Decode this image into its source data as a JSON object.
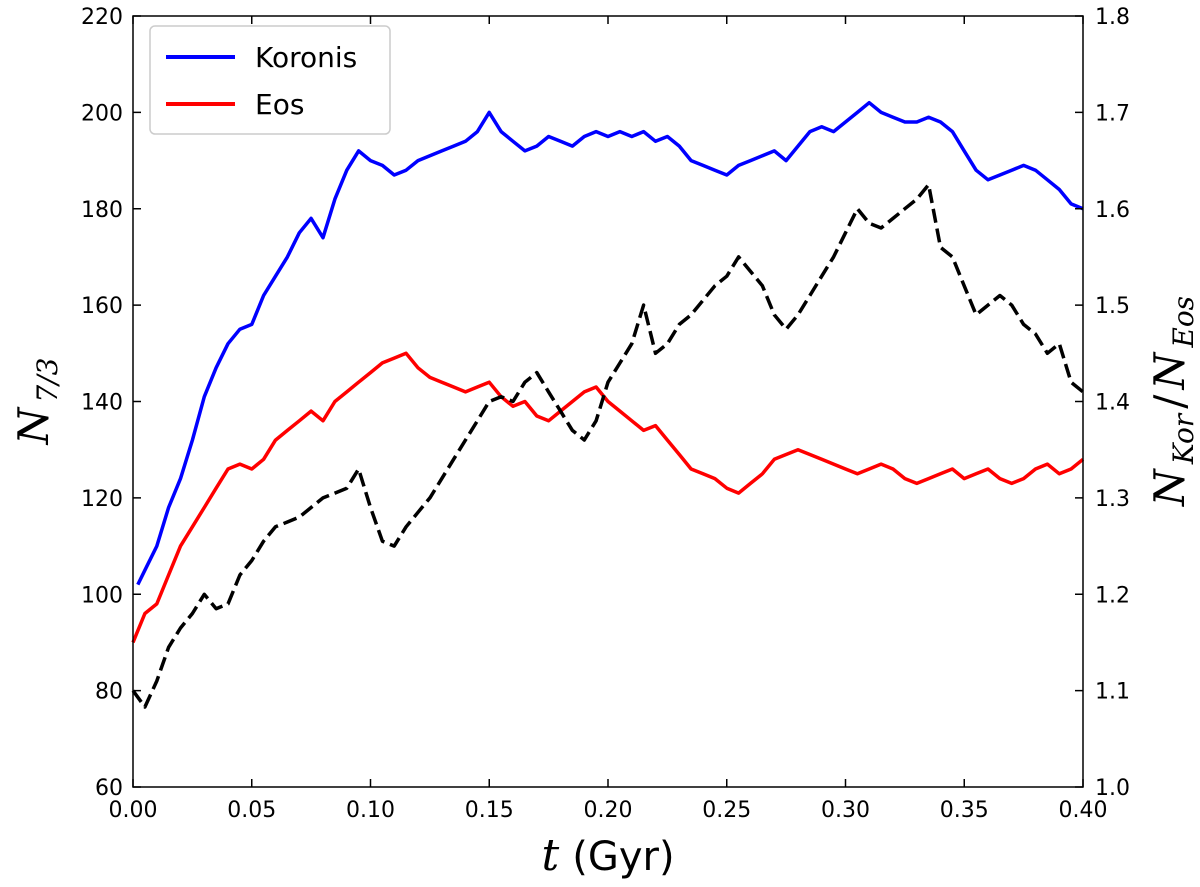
{
  "chart_data": {
    "type": "line",
    "x_ticks": [
      "0.00",
      "0.05",
      "0.10",
      "0.15",
      "0.20",
      "0.25",
      "0.30",
      "0.35",
      "0.40"
    ],
    "y_left_ticks": [
      "60",
      "80",
      "100",
      "120",
      "140",
      "160",
      "180",
      "200",
      "220"
    ],
    "y_right_ticks": [
      "1.0",
      "1.1",
      "1.2",
      "1.3",
      "1.4",
      "1.5",
      "1.6",
      "1.7",
      "1.8"
    ],
    "xlim": [
      0.0,
      0.4
    ],
    "ylim_left": [
      60,
      220
    ],
    "ylim_right": [
      1.0,
      1.8
    ],
    "xlabel": {
      "var": "t",
      "unit": "(Gyr)"
    },
    "ylabel_left": {
      "base": "N",
      "sub": "7/3"
    },
    "ylabel_right": {
      "base1": "N",
      "sub1": "Kor",
      "slash": "/",
      "base2": "N",
      "sub2": "Eos"
    },
    "legend_position": "top-left",
    "series": [
      {
        "name": "Koronis",
        "axis": "left",
        "color": "#0000ff",
        "style": "solid",
        "x": [
          0.002,
          0.005,
          0.01,
          0.015,
          0.02,
          0.025,
          0.03,
          0.035,
          0.04,
          0.045,
          0.05,
          0.055,
          0.06,
          0.065,
          0.07,
          0.075,
          0.08,
          0.085,
          0.09,
          0.095,
          0.1,
          0.105,
          0.11,
          0.115,
          0.12,
          0.125,
          0.13,
          0.135,
          0.14,
          0.145,
          0.15,
          0.155,
          0.16,
          0.165,
          0.17,
          0.175,
          0.18,
          0.185,
          0.19,
          0.195,
          0.2,
          0.205,
          0.21,
          0.215,
          0.22,
          0.225,
          0.23,
          0.235,
          0.24,
          0.245,
          0.25,
          0.255,
          0.26,
          0.265,
          0.27,
          0.275,
          0.28,
          0.285,
          0.29,
          0.295,
          0.3,
          0.305,
          0.31,
          0.315,
          0.32,
          0.325,
          0.33,
          0.335,
          0.34,
          0.345,
          0.35,
          0.355,
          0.36,
          0.365,
          0.37,
          0.375,
          0.38,
          0.385,
          0.39,
          0.395,
          0.4
        ],
        "y": [
          102,
          105,
          110,
          118,
          124,
          132,
          141,
          147,
          152,
          155,
          156,
          162,
          166,
          170,
          175,
          178,
          174,
          182,
          188,
          192,
          190,
          189,
          187,
          188,
          190,
          191,
          192,
          193,
          194,
          196,
          200,
          196,
          194,
          192,
          193,
          195,
          194,
          193,
          195,
          196,
          195,
          196,
          195,
          196,
          194,
          195,
          193,
          190,
          189,
          188,
          187,
          189,
          190,
          191,
          192,
          190,
          193,
          196,
          197,
          196,
          198,
          200,
          202,
          200,
          199,
          198,
          198,
          199,
          198,
          196,
          192,
          188,
          186,
          187,
          188,
          189,
          188,
          186,
          184,
          181,
          180
        ]
      },
      {
        "name": "Eos",
        "axis": "left",
        "color": "#ff0000",
        "style": "solid",
        "x": [
          0.0,
          0.005,
          0.01,
          0.015,
          0.02,
          0.025,
          0.03,
          0.035,
          0.04,
          0.045,
          0.05,
          0.055,
          0.06,
          0.065,
          0.07,
          0.075,
          0.08,
          0.085,
          0.09,
          0.095,
          0.1,
          0.105,
          0.11,
          0.115,
          0.12,
          0.125,
          0.13,
          0.135,
          0.14,
          0.145,
          0.15,
          0.155,
          0.16,
          0.165,
          0.17,
          0.175,
          0.18,
          0.185,
          0.19,
          0.195,
          0.2,
          0.205,
          0.21,
          0.215,
          0.22,
          0.225,
          0.23,
          0.235,
          0.24,
          0.245,
          0.25,
          0.255,
          0.26,
          0.265,
          0.27,
          0.275,
          0.28,
          0.285,
          0.29,
          0.295,
          0.3,
          0.305,
          0.31,
          0.315,
          0.32,
          0.325,
          0.33,
          0.335,
          0.34,
          0.345,
          0.35,
          0.355,
          0.36,
          0.365,
          0.37,
          0.375,
          0.38,
          0.385,
          0.39,
          0.395,
          0.4
        ],
        "y": [
          90,
          96,
          98,
          104,
          110,
          114,
          118,
          122,
          126,
          127,
          126,
          128,
          132,
          134,
          136,
          138,
          136,
          140,
          142,
          144,
          146,
          148,
          149,
          150,
          147,
          145,
          144,
          143,
          142,
          143,
          144,
          141,
          139,
          140,
          137,
          136,
          138,
          140,
          142,
          143,
          140,
          138,
          136,
          134,
          135,
          132,
          129,
          126,
          125,
          124,
          122,
          121,
          123,
          125,
          128,
          129,
          130,
          129,
          128,
          127,
          126,
          125,
          126,
          127,
          126,
          124,
          123,
          124,
          125,
          126,
          124,
          125,
          126,
          124,
          123,
          124,
          126,
          127,
          125,
          126,
          128
        ]
      },
      {
        "name": "",
        "axis": "right",
        "color": "#000000",
        "style": "dashed",
        "x": [
          0.0,
          0.005,
          0.01,
          0.015,
          0.02,
          0.025,
          0.03,
          0.035,
          0.04,
          0.045,
          0.05,
          0.055,
          0.06,
          0.065,
          0.07,
          0.075,
          0.08,
          0.085,
          0.09,
          0.095,
          0.1,
          0.105,
          0.11,
          0.115,
          0.12,
          0.125,
          0.13,
          0.135,
          0.14,
          0.145,
          0.15,
          0.155,
          0.16,
          0.165,
          0.17,
          0.175,
          0.18,
          0.185,
          0.19,
          0.195,
          0.2,
          0.205,
          0.21,
          0.215,
          0.22,
          0.225,
          0.23,
          0.235,
          0.24,
          0.245,
          0.25,
          0.255,
          0.26,
          0.265,
          0.27,
          0.275,
          0.28,
          0.285,
          0.29,
          0.295,
          0.3,
          0.305,
          0.31,
          0.315,
          0.32,
          0.325,
          0.33,
          0.335,
          0.34,
          0.345,
          0.35,
          0.355,
          0.36,
          0.365,
          0.37,
          0.375,
          0.38,
          0.385,
          0.39,
          0.395,
          0.4
        ],
        "y": [
          1.1,
          1.083,
          1.11,
          1.145,
          1.165,
          1.18,
          1.2,
          1.185,
          1.19,
          1.22,
          1.235,
          1.255,
          1.27,
          1.275,
          1.28,
          1.29,
          1.3,
          1.305,
          1.31,
          1.33,
          1.29,
          1.255,
          1.25,
          1.27,
          1.285,
          1.3,
          1.32,
          1.34,
          1.36,
          1.38,
          1.4,
          1.405,
          1.4,
          1.42,
          1.43,
          1.41,
          1.39,
          1.37,
          1.36,
          1.38,
          1.42,
          1.44,
          1.46,
          1.5,
          1.45,
          1.46,
          1.48,
          1.49,
          1.505,
          1.52,
          1.53,
          1.55,
          1.535,
          1.52,
          1.49,
          1.475,
          1.49,
          1.51,
          1.53,
          1.55,
          1.575,
          1.6,
          1.585,
          1.58,
          1.59,
          1.6,
          1.61,
          1.625,
          1.56,
          1.55,
          1.52,
          1.49,
          1.5,
          1.51,
          1.5,
          1.48,
          1.47,
          1.45,
          1.46,
          1.42,
          1.41
        ]
      }
    ]
  }
}
